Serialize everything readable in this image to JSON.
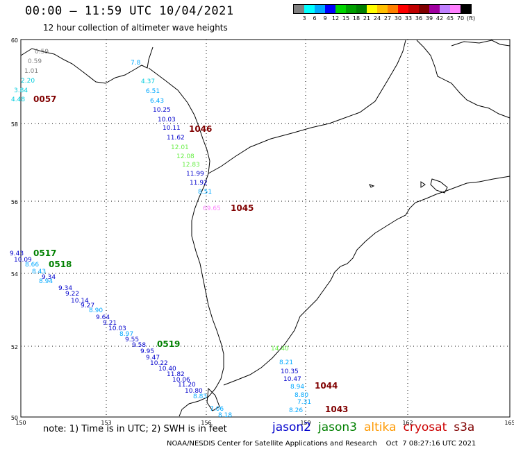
{
  "header": {
    "title": "00:00 – 11:59 UTC 10/04/2021",
    "subtitle": "12 hour collection of altimeter wave heights"
  },
  "legend": {
    "colors": [
      "#808080",
      "#00ffff",
      "#00a8ff",
      "#0000ff",
      "#00d700",
      "#00a000",
      "#008000",
      "#ffff00",
      "#ffc000",
      "#ff8000",
      "#ff0000",
      "#c00000",
      "#800000",
      "#a000a0",
      "#c080ff",
      "#ff80ff",
      "#000000"
    ],
    "ticks": [
      "3",
      "6",
      "9",
      "12",
      "15",
      "18",
      "21",
      "24",
      "27",
      "30",
      "33",
      "36",
      "39",
      "42",
      "45",
      "70",
      "(ft)"
    ]
  },
  "map": {
    "lat_labels": [
      "60",
      "58",
      "56",
      "54",
      "52",
      "50"
    ],
    "lon_labels": [
      "150",
      "153",
      "156",
      "159",
      "162",
      "165"
    ]
  },
  "track_labels": [
    {
      "text": "0057",
      "color": "#800000"
    },
    {
      "text": "1046",
      "color": "#800000"
    },
    {
      "text": "1045",
      "color": "#800000"
    },
    {
      "text": "0517",
      "color": "#008000"
    },
    {
      "text": "0518",
      "color": "#008000"
    },
    {
      "text": "0519",
      "color": "#008000"
    },
    {
      "text": "1044",
      "color": "#800000"
    },
    {
      "text": "1043",
      "color": "#800000"
    }
  ],
  "wave_values": [
    {
      "v": "0.59",
      "c": "#808080"
    },
    {
      "v": "0.59",
      "c": "#808080"
    },
    {
      "v": "1.01",
      "c": "#808080"
    },
    {
      "v": "2.20",
      "c": "#00ccdd"
    },
    {
      "v": "3.84",
      "c": "#00ccdd"
    },
    {
      "v": "4.48",
      "c": "#00ccdd"
    },
    {
      "v": "7.8",
      "c": "#00a8ff"
    },
    {
      "v": "4.37",
      "c": "#00ccdd"
    },
    {
      "v": "6.51",
      "c": "#00a8ff"
    },
    {
      "v": "6.43",
      "c": "#00a8ff"
    },
    {
      "v": "10.25",
      "c": "#0000cc"
    },
    {
      "v": "10.03",
      "c": "#0000cc"
    },
    {
      "v": "10.11",
      "c": "#0000cc"
    },
    {
      "v": "11.62",
      "c": "#0000cc"
    },
    {
      "v": "12.01",
      "c": "#66ee44"
    },
    {
      "v": "12.08",
      "c": "#66ee44"
    },
    {
      "v": "12.83",
      "c": "#66ee44"
    },
    {
      "v": "11.99",
      "c": "#0000cc"
    },
    {
      "v": "11.92",
      "c": "#0000cc"
    },
    {
      "v": "8.51",
      "c": "#00a8ff"
    },
    {
      "v": "69.65",
      "c": "#ff80ff"
    },
    {
      "v": "9.43",
      "c": "#0000cc"
    },
    {
      "v": "10.09",
      "c": "#0000cc"
    },
    {
      "v": "8.66",
      "c": "#00a8ff"
    },
    {
      "v": "8.43",
      "c": "#00a8ff"
    },
    {
      "v": "8.94",
      "c": "#00a8ff"
    },
    {
      "v": "9.34",
      "c": "#0000cc"
    },
    {
      "v": "9.34",
      "c": "#0000cc"
    },
    {
      "v": "9.22",
      "c": "#0000cc"
    },
    {
      "v": "10.14",
      "c": "#0000cc"
    },
    {
      "v": "9.27",
      "c": "#0000cc"
    },
    {
      "v": "8.90",
      "c": "#00a8ff"
    },
    {
      "v": "9.64",
      "c": "#0000cc"
    },
    {
      "v": "9.21",
      "c": "#0000cc"
    },
    {
      "v": "10.03",
      "c": "#0000cc"
    },
    {
      "v": "8.97",
      "c": "#00a8ff"
    },
    {
      "v": "9.55",
      "c": "#0000cc"
    },
    {
      "v": "9.58",
      "c": "#0000cc"
    },
    {
      "v": "9.95",
      "c": "#0000cc"
    },
    {
      "v": "9.47",
      "c": "#0000cc"
    },
    {
      "v": "10.22",
      "c": "#0000cc"
    },
    {
      "v": "10.40",
      "c": "#0000cc"
    },
    {
      "v": "11.82",
      "c": "#0000cc"
    },
    {
      "v": "10.06",
      "c": "#0000cc"
    },
    {
      "v": "11.20",
      "c": "#0000cc"
    },
    {
      "v": "10.80",
      "c": "#0000cc"
    },
    {
      "v": "8.83",
      "c": "#00a8ff"
    },
    {
      "v": "7.06",
      "c": "#00a8ff"
    },
    {
      "v": "8.18",
      "c": "#00a8ff"
    },
    {
      "v": "14.40",
      "c": "#66ee44"
    },
    {
      "v": "8.21",
      "c": "#00a8ff"
    },
    {
      "v": "10.35",
      "c": "#0000cc"
    },
    {
      "v": "10.47",
      "c": "#0000cc"
    },
    {
      "v": "8.94",
      "c": "#00a8ff"
    },
    {
      "v": "8.80",
      "c": "#00a8ff"
    },
    {
      "v": "7.31",
      "c": "#00a8ff"
    },
    {
      "v": "8.26",
      "c": "#00a8ff"
    }
  ],
  "note": "note:  1) Time is in UTC; 2) SWH is in feet",
  "missions": [
    {
      "name": "jason2",
      "color": "#0000cc"
    },
    {
      "name": "jason3",
      "color": "#008000"
    },
    {
      "name": "altika",
      "color": "#ff9900"
    },
    {
      "name": "cryosat",
      "color": "#cc0000"
    },
    {
      "name": "s3a",
      "color": "#800000"
    }
  ],
  "footer": "NOAA/NESDIS Center for Satellite Applications and Research    Oct  7 08:27:16 UTC 2021"
}
